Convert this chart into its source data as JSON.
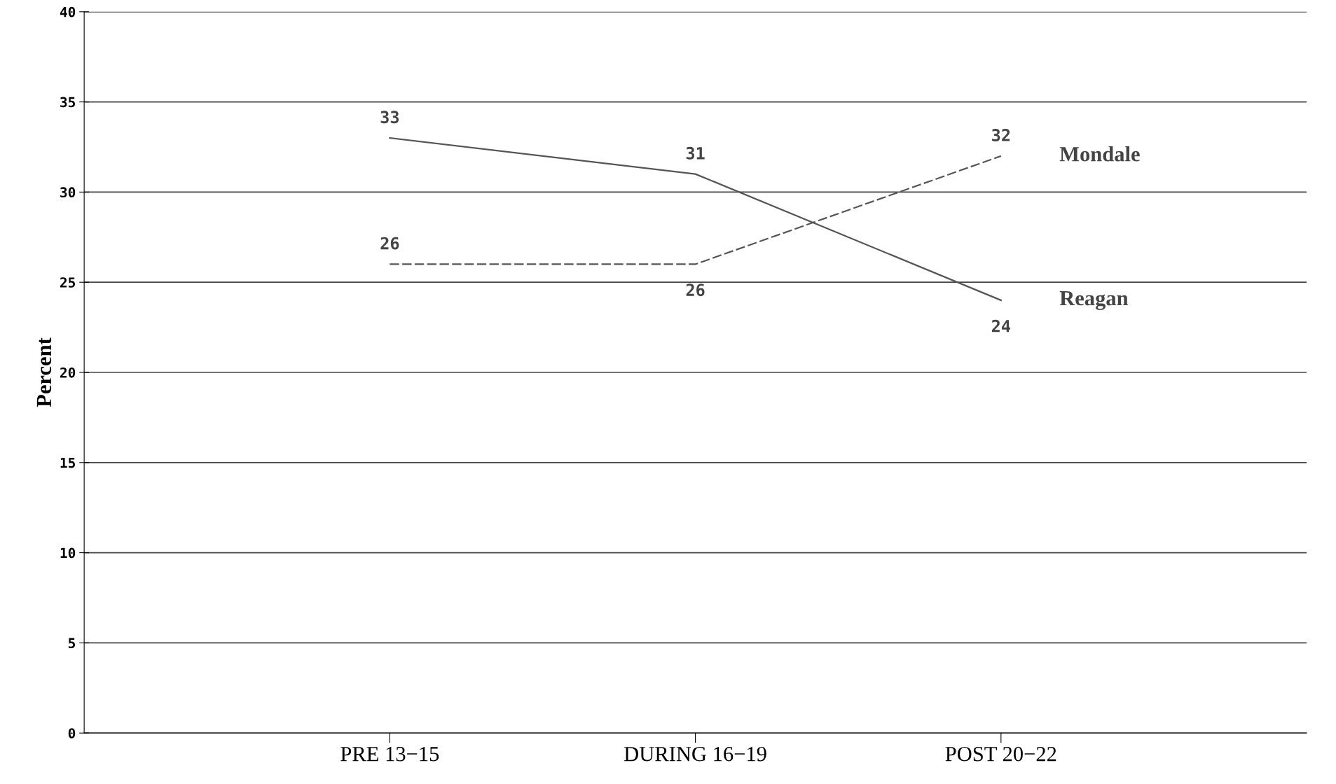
{
  "chart_data": {
    "type": "line",
    "ylabel": "Percent",
    "categories": [
      "PRE 13−15",
      "DURING 16−19",
      "POST 20−22"
    ],
    "series": [
      {
        "name": "Reagan",
        "color": "#555555",
        "line_style": "solid",
        "values": [
          33,
          31,
          24
        ]
      },
      {
        "name": "Mondale",
        "color": "#555555",
        "line_style": "dashed",
        "values": [
          26,
          26,
          32
        ]
      }
    ],
    "ylim": [
      0,
      40
    ],
    "yticks": [
      0,
      5,
      10,
      15,
      20,
      25,
      30,
      35,
      40
    ],
    "grid": "y",
    "data_labels": true,
    "legend": false,
    "marker": "none"
  }
}
